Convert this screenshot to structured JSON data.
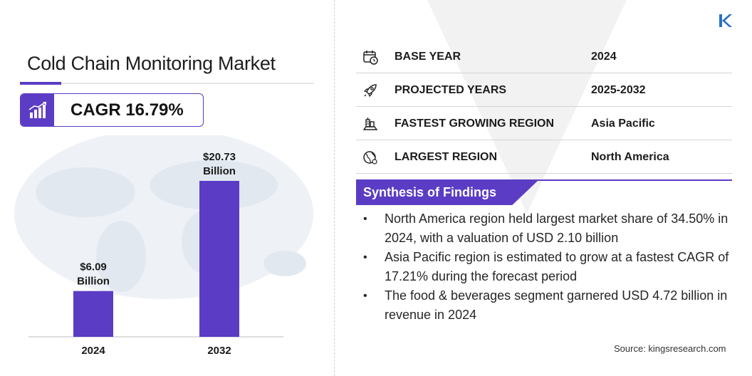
{
  "brand": {
    "logo_letter": "K",
    "accent": "#5b3cc4"
  },
  "title": "Cold Chain Monitoring Market",
  "cagr": {
    "label": "CAGR 16.79%",
    "icon": "growth-chart-icon"
  },
  "chart_data": {
    "type": "bar",
    "categories": [
      "2024",
      "2032"
    ],
    "values": [
      6.09,
      20.73
    ],
    "data_labels": [
      [
        "$6.09",
        "Billion"
      ],
      [
        "$20.73",
        "Billion"
      ]
    ],
    "unit": "USD Billion",
    "bar_color": "#5b3cc4",
    "grid": false,
    "legend": "none"
  },
  "info_rows": [
    {
      "icon": "calendar-icon",
      "label": "BASE YEAR",
      "value": "2024"
    },
    {
      "icon": "rocket-icon",
      "label": "PROJECTED YEARS",
      "value": "2025-2032"
    },
    {
      "icon": "city-region-icon",
      "label": "FASTEST GROWING REGION",
      "value": "Asia Pacific"
    },
    {
      "icon": "globe-icon",
      "label": "LARGEST REGION",
      "value": "North America"
    }
  ],
  "synthesis": {
    "title": "Synthesis of Findings",
    "bullet": "•",
    "items": [
      "North America region held largest market share of 34.50% in 2024, with a valuation of USD 2.10 billion",
      "Asia Pacific region is estimated to grow at a fastest CAGR of 17.21% during the forecast period",
      "The food & beverages segment garnered USD 4.72 billion in revenue in 2024"
    ]
  },
  "source": "Source:  kingsresearch.com"
}
